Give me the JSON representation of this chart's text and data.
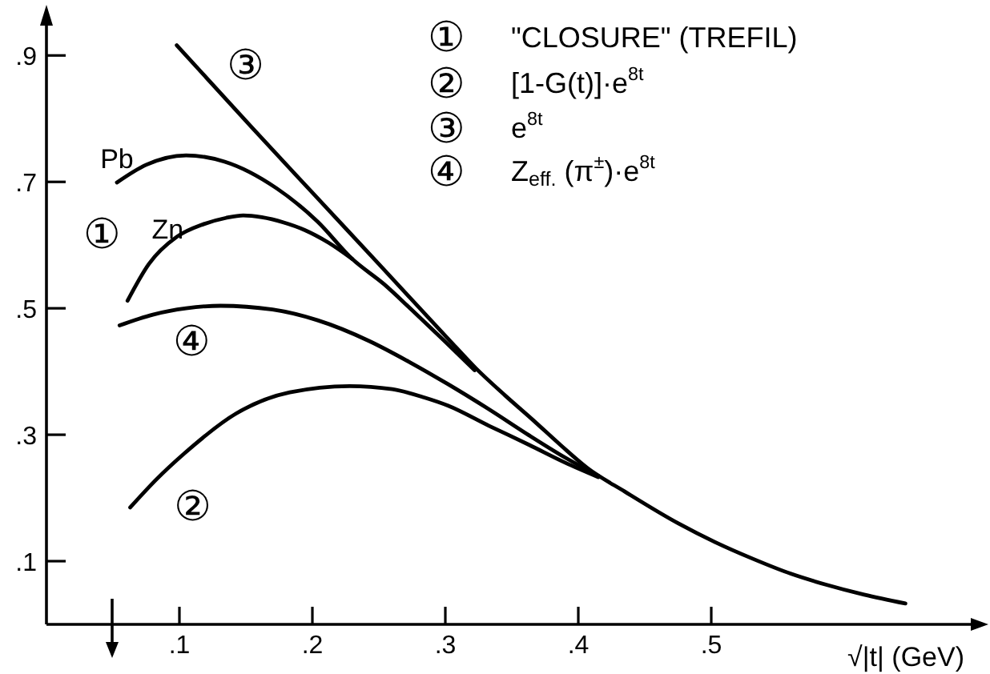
{
  "chart_data": {
    "type": "line",
    "xlabel": "√|t| (GeV)",
    "annotations": [
      "①",
      "① \"CLOSURE\" (TREFIL)",
      "② [1-G(t)]·e$^{8t}$",
      "③ e$^{8t}$",
      "④ Z$_{eff.}$ (π$^{±}$)·e$^{8t}$"
    ],
    "xlim": [
      0,
      0.7
    ],
    "ylim": [
      0,
      0.97
    ],
    "xticks": [
      {
        "value": 0.1,
        "label": ".1"
      },
      {
        "value": 0.2,
        "label": ".2"
      },
      {
        "value": 0.3,
        "label": ".3"
      },
      {
        "value": 0.4,
        "label": ".4"
      },
      {
        "value": 0.5,
        "label": ".5"
      }
    ],
    "yticks": [
      {
        "value": 0.1,
        "label": ".1"
      },
      {
        "value": 0.3,
        "label": ".3"
      },
      {
        "value": 0.5,
        "label": ".5"
      },
      {
        "value": 0.7,
        "label": ".7"
      },
      {
        "value": 0.9,
        "label": ".9"
      }
    ],
    "marker": "none",
    "line_style": "solid",
    "series": [
      {
        "name": "Pb",
        "color": "#000000",
        "x": [
          0.053,
          0.075,
          0.105,
          0.134,
          0.173,
          0.204,
          0.23,
          0.254,
          0.275,
          0.3,
          0.322
        ],
        "values": [
          0.699,
          0.727,
          0.742,
          0.732,
          0.69,
          0.637,
          0.578,
          0.538,
          0.497,
          0.447,
          0.402
        ]
      },
      {
        "name": "Zn",
        "color": "#000000",
        "x": [
          0.061,
          0.077,
          0.098,
          0.118,
          0.135,
          0.148,
          0.162,
          0.178,
          0.194,
          0.212,
          0.23
        ],
        "values": [
          0.512,
          0.57,
          0.613,
          0.633,
          0.643,
          0.647,
          0.644,
          0.636,
          0.624,
          0.604,
          0.578
        ]
      },
      {
        "name": "③",
        "color": "#000000",
        "x": [
          0.098,
          0.155,
          0.2,
          0.25,
          0.302,
          0.323,
          0.345,
          0.365,
          0.387,
          0.407,
          0.435,
          0.475,
          0.503,
          0.531,
          0.56,
          0.586,
          0.615,
          0.646
        ],
        "values": [
          0.916,
          0.785,
          0.683,
          0.57,
          0.452,
          0.405,
          0.362,
          0.325,
          0.283,
          0.247,
          0.21,
          0.16,
          0.13,
          0.104,
          0.08,
          0.063,
          0.047,
          0.033
        ]
      },
      {
        "name": "④",
        "color": "#000000",
        "x": [
          0.055,
          0.08,
          0.105,
          0.131,
          0.17,
          0.204,
          0.243,
          0.273,
          0.302,
          0.333,
          0.363,
          0.39,
          0.415
        ],
        "values": [
          0.473,
          0.49,
          0.5,
          0.504,
          0.498,
          0.481,
          0.448,
          0.415,
          0.38,
          0.34,
          0.299,
          0.264,
          0.235
        ]
      },
      {
        "name": "②",
        "color": "#000000",
        "x": [
          0.063,
          0.083,
          0.104,
          0.143,
          0.183,
          0.228,
          0.26,
          0.284,
          0.302,
          0.333,
          0.363,
          0.39,
          0.415
        ],
        "values": [
          0.185,
          0.23,
          0.271,
          0.334,
          0.367,
          0.377,
          0.372,
          0.359,
          0.346,
          0.314,
          0.284,
          0.256,
          0.233
        ]
      }
    ]
  }
}
